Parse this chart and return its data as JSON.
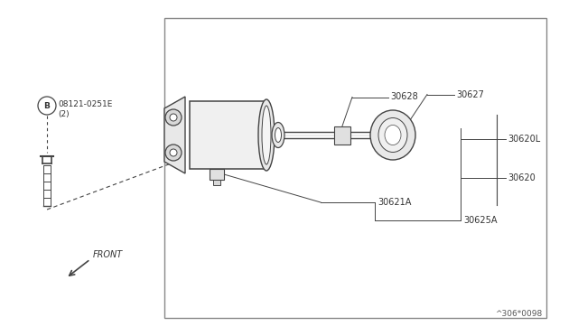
{
  "bg_color": "#ffffff",
  "border_color": "#888888",
  "line_color": "#444444",
  "text_color": "#333333",
  "fig_width": 6.4,
  "fig_height": 3.72,
  "dpi": 100,
  "border": [
    0.285,
    0.055,
    0.945,
    0.945
  ],
  "bottom_code": "^306*0098",
  "bolt_circle_label": "B",
  "bolt_part_num": "08121-0251E",
  "bolt_qty": "(2)",
  "labels": [
    "30621A",
    "30625A",
    "30620",
    "30620L",
    "30628",
    "30627"
  ]
}
